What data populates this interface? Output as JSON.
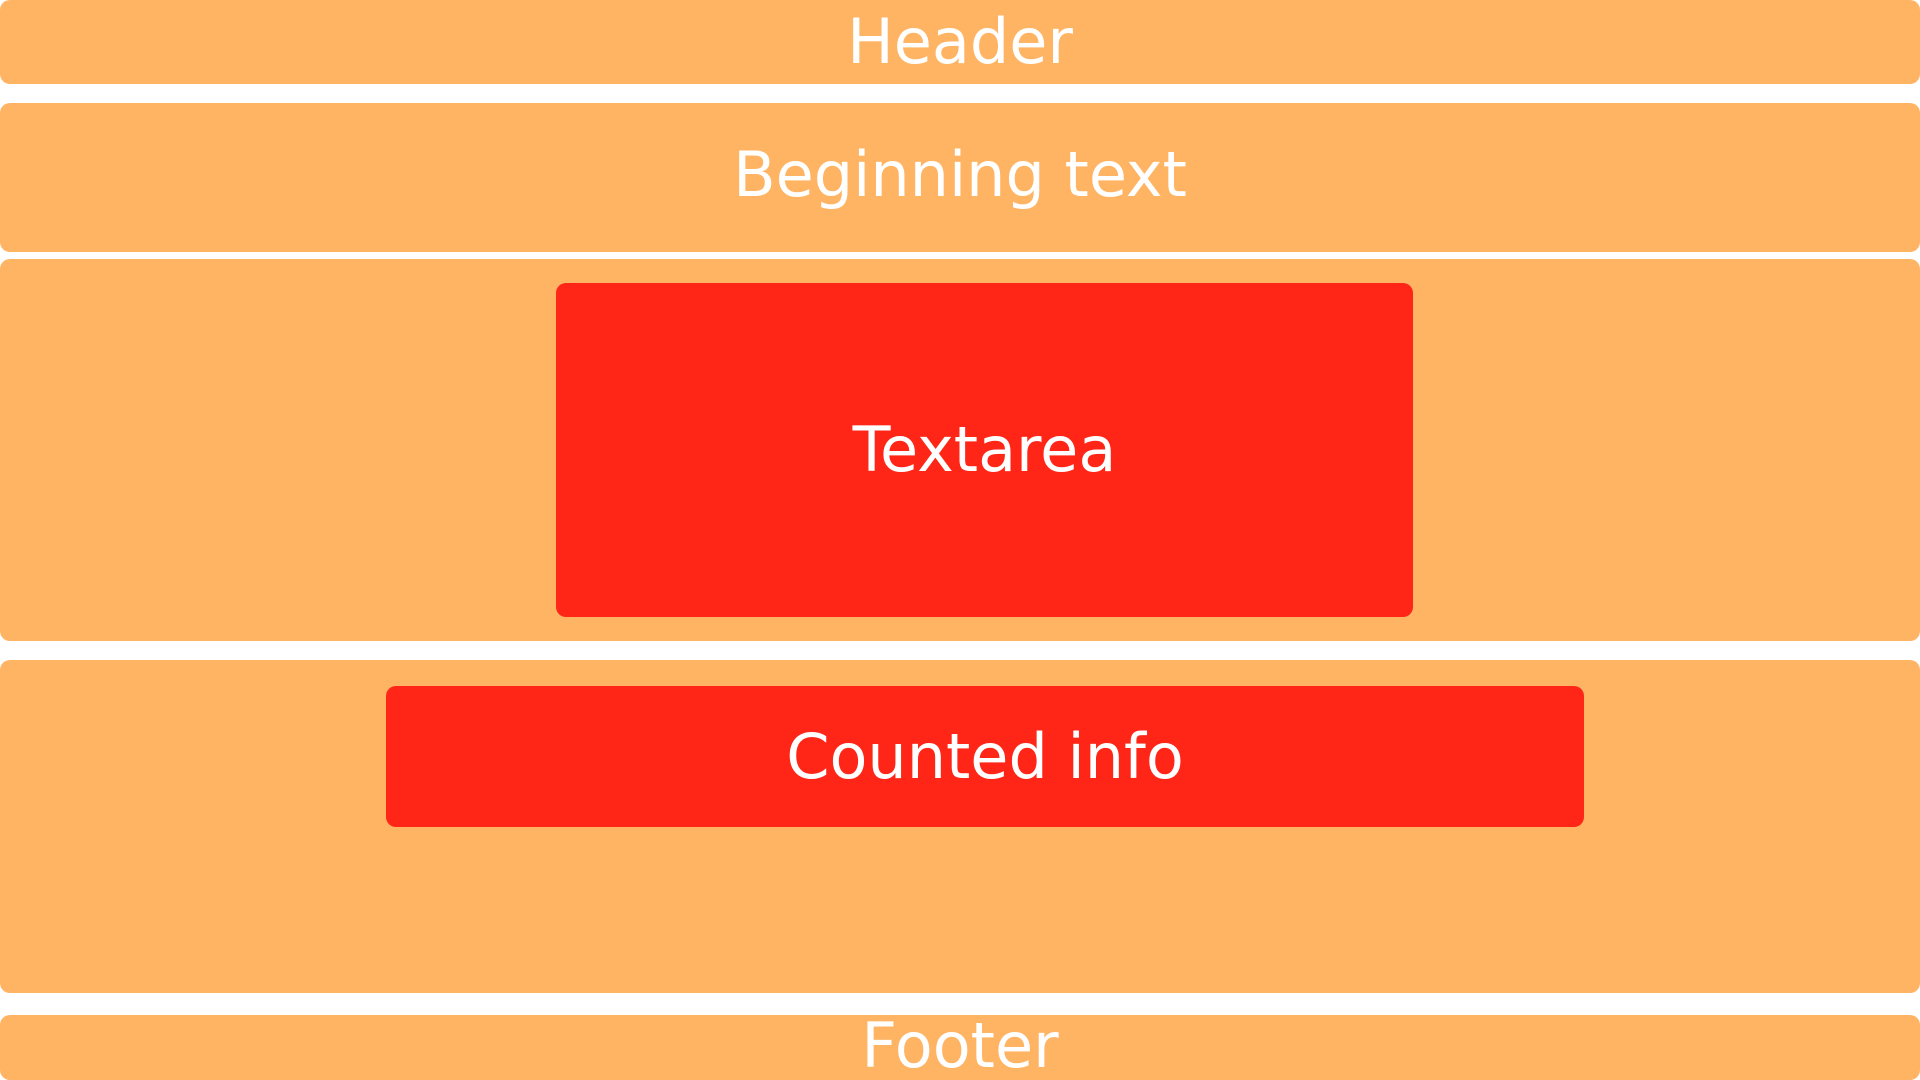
{
  "header": {
    "label": "Header"
  },
  "beginning": {
    "label": "Beginning text"
  },
  "textarea_section": {
    "textarea": {
      "label": "Textarea"
    }
  },
  "counted_section": {
    "counted_info": {
      "label": "Counted info"
    }
  },
  "footer": {
    "label": "Footer"
  },
  "colors": {
    "section_fill": "#ffb464",
    "inner_fill": "#ff2618",
    "text": "#ffffff",
    "background": "#ffffff"
  }
}
